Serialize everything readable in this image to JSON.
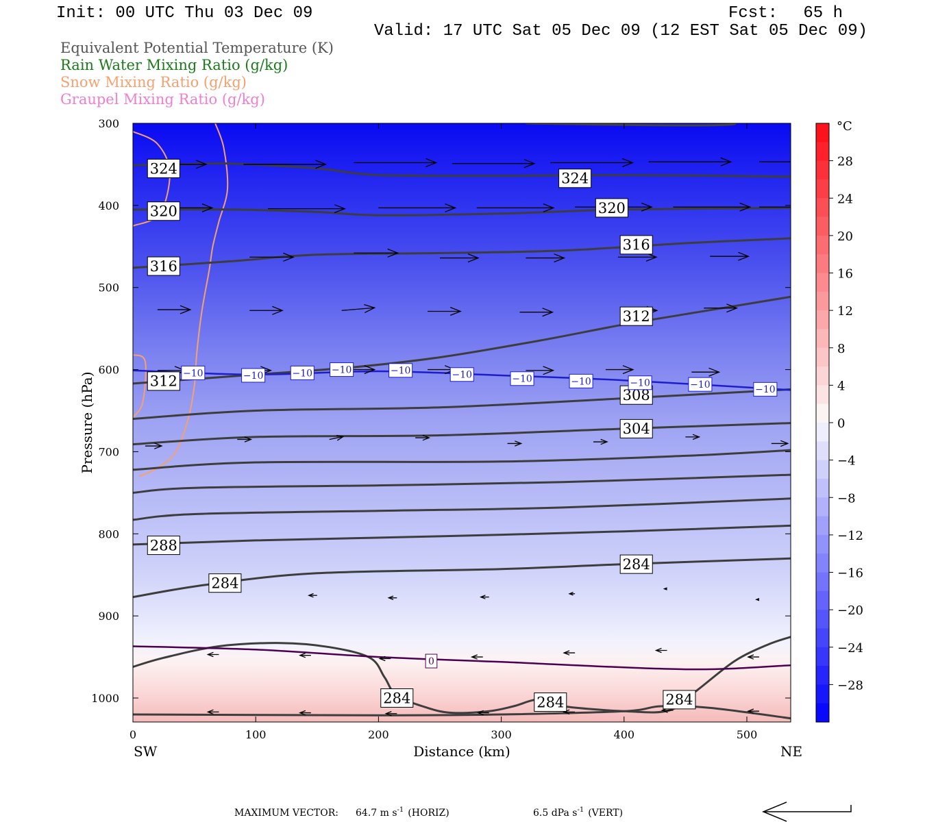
{
  "header": {
    "init": "Init: 00 UTC Thu 03 Dec 09",
    "fcst_label": "Fcst:",
    "fcst_value": "65 h",
    "valid": "Valid: 17 UTC Sat 05 Dec 09 (12 EST Sat 05 Dec 09)",
    "legend": [
      {
        "text": "Equivalent Potential Temperature (K)",
        "color": "#555555"
      },
      {
        "text": "Rain Water Mixing Ratio (g/kg)",
        "color": "#1a7a1a"
      },
      {
        "text": "Snow Mixing Ratio (g/kg)",
        "color": "#f5a070"
      },
      {
        "text": "Graupel Mixing Ratio (g/kg)",
        "color": "#f07ed0"
      }
    ]
  },
  "chart_data": {
    "type": "cross-section",
    "xlabel": "Distance (km)",
    "ylabel": "Pressure (hPa)",
    "x_range": [
      0,
      537
    ],
    "y_range": [
      300,
      1030
    ],
    "x_ticks": [
      0,
      100,
      200,
      300,
      400,
      500
    ],
    "y_ticks": [
      300,
      400,
      500,
      600,
      700,
      800,
      900,
      1000
    ],
    "x_end_labels": {
      "left": "SW",
      "right": "NE"
    },
    "colorbar": {
      "unit": "°C",
      "range": [
        -32,
        32
      ],
      "tick_labels": [
        28,
        24,
        20,
        16,
        12,
        8,
        4,
        0,
        -4,
        -8,
        -12,
        -16,
        -20,
        -24,
        -28
      ]
    },
    "theta_e_contours": [
      {
        "label": "324",
        "points": [
          [
            0,
            351
          ],
          [
            40,
            350
          ],
          [
            80,
            349
          ],
          [
            150,
            355
          ],
          [
            200,
            363
          ],
          [
            300,
            364
          ],
          [
            400,
            363
          ],
          [
            537,
            365
          ]
        ]
      },
      {
        "label": "320",
        "points": [
          [
            0,
            405
          ],
          [
            80,
            405
          ],
          [
            150,
            408
          ],
          [
            200,
            412
          ],
          [
            300,
            410
          ],
          [
            400,
            405
          ],
          [
            537,
            403
          ]
        ]
      },
      {
        "label": "316",
        "points": [
          [
            0,
            476
          ],
          [
            80,
            468
          ],
          [
            150,
            460
          ],
          [
            250,
            458
          ],
          [
            350,
            455
          ],
          [
            450,
            446
          ],
          [
            537,
            440
          ]
        ]
      },
      {
        "label": "312",
        "points": [
          [
            0,
            617
          ],
          [
            100,
            606
          ],
          [
            180,
            597
          ],
          [
            250,
            585
          ],
          [
            330,
            565
          ],
          [
            400,
            545
          ],
          [
            460,
            530
          ],
          [
            537,
            511
          ]
        ]
      },
      {
        "label": "308",
        "points": [
          [
            0,
            660
          ],
          [
            100,
            650
          ],
          [
            250,
            646
          ],
          [
            400,
            635
          ],
          [
            537,
            624
          ]
        ]
      },
      {
        "label": "304",
        "points": [
          [
            0,
            691
          ],
          [
            100,
            682
          ],
          [
            250,
            680
          ],
          [
            400,
            672
          ],
          [
            537,
            665
          ]
        ]
      },
      {
        "label": "",
        "points": [
          [
            0,
            722
          ],
          [
            100,
            713
          ],
          [
            300,
            712
          ],
          [
            450,
            705
          ],
          [
            537,
            698
          ]
        ]
      },
      {
        "label": "",
        "points": [
          [
            0,
            750
          ],
          [
            50,
            744
          ],
          [
            200,
            741
          ],
          [
            350,
            737
          ],
          [
            537,
            728
          ]
        ]
      },
      {
        "label": "",
        "points": [
          [
            0,
            783
          ],
          [
            50,
            776
          ],
          [
            200,
            772
          ],
          [
            350,
            768
          ],
          [
            537,
            757
          ]
        ]
      },
      {
        "label": "288",
        "points": [
          [
            0,
            813
          ],
          [
            100,
            808
          ],
          [
            250,
            803
          ],
          [
            400,
            797
          ],
          [
            537,
            790
          ]
        ]
      },
      {
        "label": "284",
        "points": [
          [
            0,
            877
          ],
          [
            60,
            862
          ],
          [
            150,
            848
          ],
          [
            300,
            843
          ],
          [
            400,
            837
          ],
          [
            537,
            830
          ]
        ]
      },
      {
        "label": "284",
        "points": [
          [
            0,
            962
          ],
          [
            25,
            951
          ],
          [
            70,
            937
          ],
          [
            120,
            933
          ],
          [
            160,
            938
          ],
          [
            193,
            951
          ],
          [
            205,
            975
          ],
          [
            215,
            997
          ],
          [
            240,
            1012
          ],
          [
            260,
            1018
          ],
          [
            290,
            1016
          ],
          [
            310,
            1010
          ],
          [
            330,
            1002
          ],
          [
            350,
            1010
          ],
          [
            400,
            1016
          ],
          [
            437,
            1015
          ],
          [
            460,
            990
          ],
          [
            490,
            955
          ],
          [
            517,
            935
          ],
          [
            537,
            925
          ]
        ]
      },
      {
        "label": "",
        "points": [
          [
            0,
            1020
          ],
          [
            200,
            1021
          ],
          [
            300,
            1020
          ],
          [
            400,
            1016
          ],
          [
            430,
            1010
          ],
          [
            470,
            1012
          ],
          [
            537,
            1025
          ]
        ]
      }
    ],
    "isotherm_contours": [
      {
        "label": "-10",
        "color": "#1d1dcc",
        "points": [
          [
            0,
            601
          ],
          [
            100,
            606
          ],
          [
            200,
            602
          ],
          [
            300,
            607
          ],
          [
            400,
            613
          ],
          [
            537,
            625
          ]
        ]
      },
      {
        "label": "0",
        "color": "#4b0050",
        "points": [
          [
            0,
            937
          ],
          [
            100,
            941
          ],
          [
            200,
            950
          ],
          [
            300,
            956
          ],
          [
            450,
            965
          ],
          [
            537,
            960
          ]
        ]
      }
    ],
    "isotherm_labels": [
      {
        "text": "-10",
        "points": [
          [
            49,
            604
          ],
          [
            98,
            607
          ],
          [
            138,
            604
          ],
          [
            170,
            600
          ],
          [
            218,
            601
          ],
          [
            268,
            606
          ],
          [
            317,
            611
          ],
          [
            365,
            614
          ],
          [
            413,
            616
          ],
          [
            462,
            618
          ],
          [
            515,
            624
          ]
        ]
      },
      {
        "text": "0",
        "points": [
          [
            243,
            955
          ]
        ]
      }
    ],
    "snow_contours": [
      {
        "points": [
          [
            0,
            310
          ],
          [
            20,
            325
          ],
          [
            30,
            360
          ],
          [
            22,
            410
          ],
          [
            0,
            425
          ]
        ]
      },
      {
        "points": [
          [
            67,
            300
          ],
          [
            74,
            330
          ],
          [
            77,
            380
          ],
          [
            70,
            420
          ],
          [
            65,
            450
          ],
          [
            62,
            480
          ],
          [
            56,
            530
          ],
          [
            52,
            580
          ],
          [
            50,
            620
          ],
          [
            45,
            660
          ],
          [
            35,
            700
          ],
          [
            20,
            720
          ],
          [
            5,
            730
          ]
        ]
      },
      {
        "points": [
          [
            0,
            582
          ],
          [
            10,
            590
          ],
          [
            8,
            640
          ],
          [
            0,
            658
          ]
        ]
      }
    ],
    "vectors": [
      {
        "x": 15,
        "p": 350,
        "u": 20,
        "w": 0
      },
      {
        "x": 90,
        "p": 350,
        "u": 30,
        "w": 0
      },
      {
        "x": 180,
        "p": 348,
        "u": 30,
        "w": 0
      },
      {
        "x": 260,
        "p": 349,
        "u": 30,
        "w": 0
      },
      {
        "x": 340,
        "p": 348,
        "u": 30,
        "w": 0
      },
      {
        "x": 420,
        "p": 347,
        "u": 30,
        "w": 0
      },
      {
        "x": 510,
        "p": 347,
        "u": 30,
        "w": 0
      },
      {
        "x": 20,
        "p": 403,
        "u": 20,
        "w": 0
      },
      {
        "x": 110,
        "p": 404,
        "u": 28,
        "w": 0
      },
      {
        "x": 200,
        "p": 403,
        "u": 28,
        "w": 0
      },
      {
        "x": 280,
        "p": 403,
        "u": 28,
        "w": 0
      },
      {
        "x": 360,
        "p": 402,
        "u": 28,
        "w": 0
      },
      {
        "x": 440,
        "p": 402,
        "u": 28,
        "w": 0
      },
      {
        "x": 510,
        "p": 402,
        "u": 25,
        "w": 0
      },
      {
        "x": 95,
        "p": 463,
        "u": 16,
        "w": 0
      },
      {
        "x": 180,
        "p": 458,
        "u": 16,
        "w": 0
      },
      {
        "x": 250,
        "p": 464,
        "u": 14,
        "w": 0
      },
      {
        "x": 320,
        "p": 464,
        "u": 14,
        "w": 0
      },
      {
        "x": 395,
        "p": 463,
        "u": 14,
        "w": 0
      },
      {
        "x": 470,
        "p": 462,
        "u": 14,
        "w": 0
      },
      {
        "x": 537,
        "p": 464,
        "u": 12,
        "w": 0
      },
      {
        "x": 20,
        "p": 527,
        "u": 12,
        "w": 0
      },
      {
        "x": 95,
        "p": 528,
        "u": 12,
        "w": 0
      },
      {
        "x": 170,
        "p": 528,
        "u": 12,
        "w": 1
      },
      {
        "x": 240,
        "p": 529,
        "u": 12,
        "w": 0
      },
      {
        "x": 315,
        "p": 530,
        "u": 12,
        "w": 0
      },
      {
        "x": 400,
        "p": 528,
        "u": 12,
        "w": 0
      },
      {
        "x": 465,
        "p": 525,
        "u": 12,
        "w": 0
      },
      {
        "x": 537,
        "p": 530,
        "u": 10,
        "w": 0
      },
      {
        "x": 20,
        "p": 601,
        "u": 10,
        "w": 0
      },
      {
        "x": 90,
        "p": 601,
        "u": 10,
        "w": 0
      },
      {
        "x": 170,
        "p": 600,
        "u": 12,
        "w": 0
      },
      {
        "x": 240,
        "p": 600,
        "u": 10,
        "w": 0
      },
      {
        "x": 320,
        "p": 601,
        "u": 10,
        "w": 0
      },
      {
        "x": 385,
        "p": 600,
        "u": 10,
        "w": 0
      },
      {
        "x": 455,
        "p": 603,
        "u": 10,
        "w": 0
      },
      {
        "x": 537,
        "p": 605,
        "u": 6,
        "w": 0
      },
      {
        "x": 10,
        "p": 693,
        "u": 6,
        "w": 0
      },
      {
        "x": 85,
        "p": 685,
        "u": 5,
        "w": 0
      },
      {
        "x": 160,
        "p": 685,
        "u": 5,
        "w": 1
      },
      {
        "x": 230,
        "p": 683,
        "u": 5,
        "w": 0
      },
      {
        "x": 305,
        "p": 690,
        "u": 5,
        "w": 0
      },
      {
        "x": 375,
        "p": 688,
        "u": 5,
        "w": 0
      },
      {
        "x": 450,
        "p": 682,
        "u": 5,
        "w": 0
      },
      {
        "x": 520,
        "p": 690,
        "u": 6,
        "w": 0
      },
      {
        "x": 150,
        "p": 875,
        "u": -3,
        "w": 0
      },
      {
        "x": 215,
        "p": 878,
        "u": -3,
        "w": 0
      },
      {
        "x": 290,
        "p": 877,
        "u": -3,
        "w": 0
      },
      {
        "x": 360,
        "p": 873,
        "u": -2,
        "w": 0
      },
      {
        "x": 435,
        "p": 867,
        "u": -1,
        "w": 0
      },
      {
        "x": 510,
        "p": 880,
        "u": -1,
        "w": 0
      },
      {
        "x": 70,
        "p": 947,
        "u": -4,
        "w": 0
      },
      {
        "x": 145,
        "p": 948,
        "u": -4,
        "w": 0
      },
      {
        "x": 210,
        "p": 952,
        "u": -4,
        "w": 0
      },
      {
        "x": 285,
        "p": 950,
        "u": -4,
        "w": 0
      },
      {
        "x": 360,
        "p": 945,
        "u": -4,
        "w": 0
      },
      {
        "x": 435,
        "p": 942,
        "u": -4,
        "w": 0
      },
      {
        "x": 510,
        "p": 950,
        "u": -4,
        "w": 0
      },
      {
        "x": 70,
        "p": 1017,
        "u": -4,
        "w": 0
      },
      {
        "x": 145,
        "p": 1018,
        "u": -4,
        "w": 0
      },
      {
        "x": 215,
        "p": 1019,
        "u": -4,
        "w": 0
      },
      {
        "x": 290,
        "p": 1018,
        "u": -4,
        "w": 0
      },
      {
        "x": 360,
        "p": 1017,
        "u": -4,
        "w": 0
      },
      {
        "x": 440,
        "p": 1015,
        "u": -4,
        "w": 0
      },
      {
        "x": 510,
        "p": 1016,
        "u": -4,
        "w": 0
      }
    ]
  },
  "footer": {
    "max_vector_label": "MAXIMUM VECTOR:",
    "horiz_value": "64.7 m s",
    "horiz_exp": "-1",
    "horiz_tag": "(HORIZ)",
    "vert_value": "6.5 dPa s",
    "vert_exp": "-1",
    "vert_tag": "(VERT)"
  }
}
